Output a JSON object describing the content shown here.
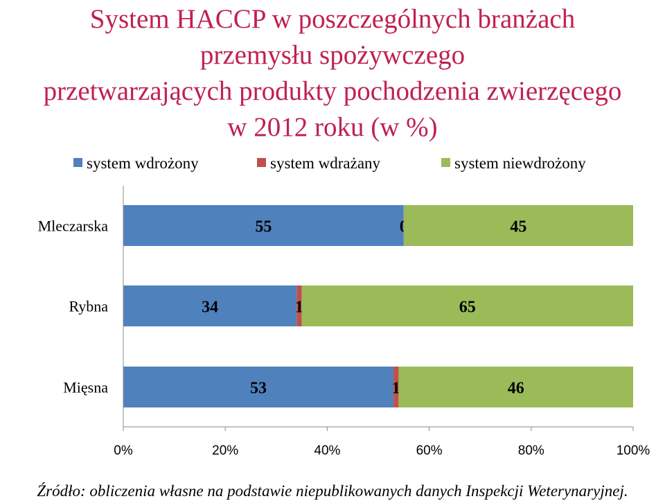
{
  "chart_data": {
    "type": "bar",
    "orientation": "horizontal",
    "stacked": "percent",
    "title": [
      "System HACCP  w poszczególnych branżach",
      "przemysłu spożywczego",
      "przetwarzających produkty pochodzenia zwierzęcego",
      "w 2012 roku (w %)"
    ],
    "categories": [
      "Mleczarska",
      "Rybna",
      "Mięsna"
    ],
    "series": [
      {
        "name": "system wdrożony",
        "color": "#4f81bd",
        "values": [
          55,
          34,
          53
        ]
      },
      {
        "name": "system wdrażany",
        "color": "#c0504d",
        "values": [
          0,
          1,
          1
        ]
      },
      {
        "name": "system niewdrożony",
        "color": "#9bbb59",
        "values": [
          45,
          65,
          46
        ]
      }
    ],
    "x_ticks": [
      "0%",
      "20%",
      "40%",
      "60%",
      "80%",
      "100%"
    ],
    "xlim": [
      0,
      100
    ],
    "legend_position": "top",
    "grid": false
  },
  "source": "Źródło: obliczenia własne na podstawie niepublikowanych danych Inspekcji Weterynaryjnej."
}
